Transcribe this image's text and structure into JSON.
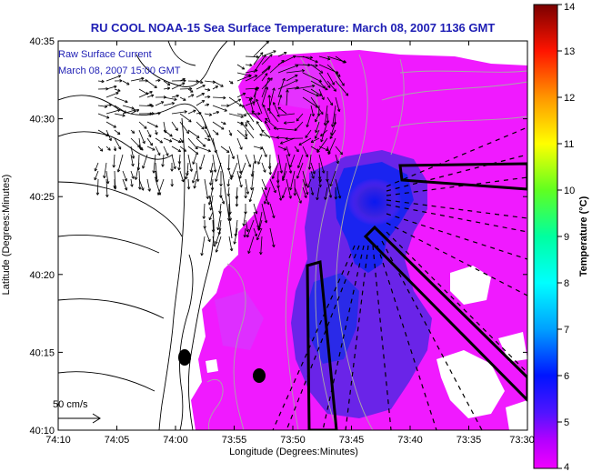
{
  "title": "RU COOL  NOAA-15  Sea Surface Temperature:  March 08, 2007 1136 GMT",
  "legend": {
    "line1": "Raw Surface Current",
    "line2": "March 08, 2007 15:00 GMT"
  },
  "scale_label": "50 cm/s",
  "xlabel": "Longitude (Degrees:Minutes)",
  "ylabel": "Latitude (Degrees:Minutes)",
  "xticks": [
    "74:10",
    "74:05",
    "74:00",
    "73:55",
    "73:50",
    "73:45",
    "73:40",
    "73:35",
    "73:30"
  ],
  "yticks": [
    "40:35",
    "40:30",
    "40:25",
    "40:20",
    "40:15",
    "40:10"
  ],
  "colorbar": {
    "label": "Temperature (°C)",
    "ticks": [
      "4",
      "5",
      "6",
      "7",
      "8",
      "9",
      "10",
      "11",
      "12",
      "13",
      "14"
    ],
    "min": 4,
    "max": 14
  },
  "colors": {
    "title": "#1e1eb4",
    "warm_water": "#f01aff",
    "cold_water": "#1426e6",
    "land": "#ffffff",
    "coastline": "#000000",
    "bathymetry": "#a0a0a0"
  },
  "ship_tracks": 3,
  "markers": 2
}
